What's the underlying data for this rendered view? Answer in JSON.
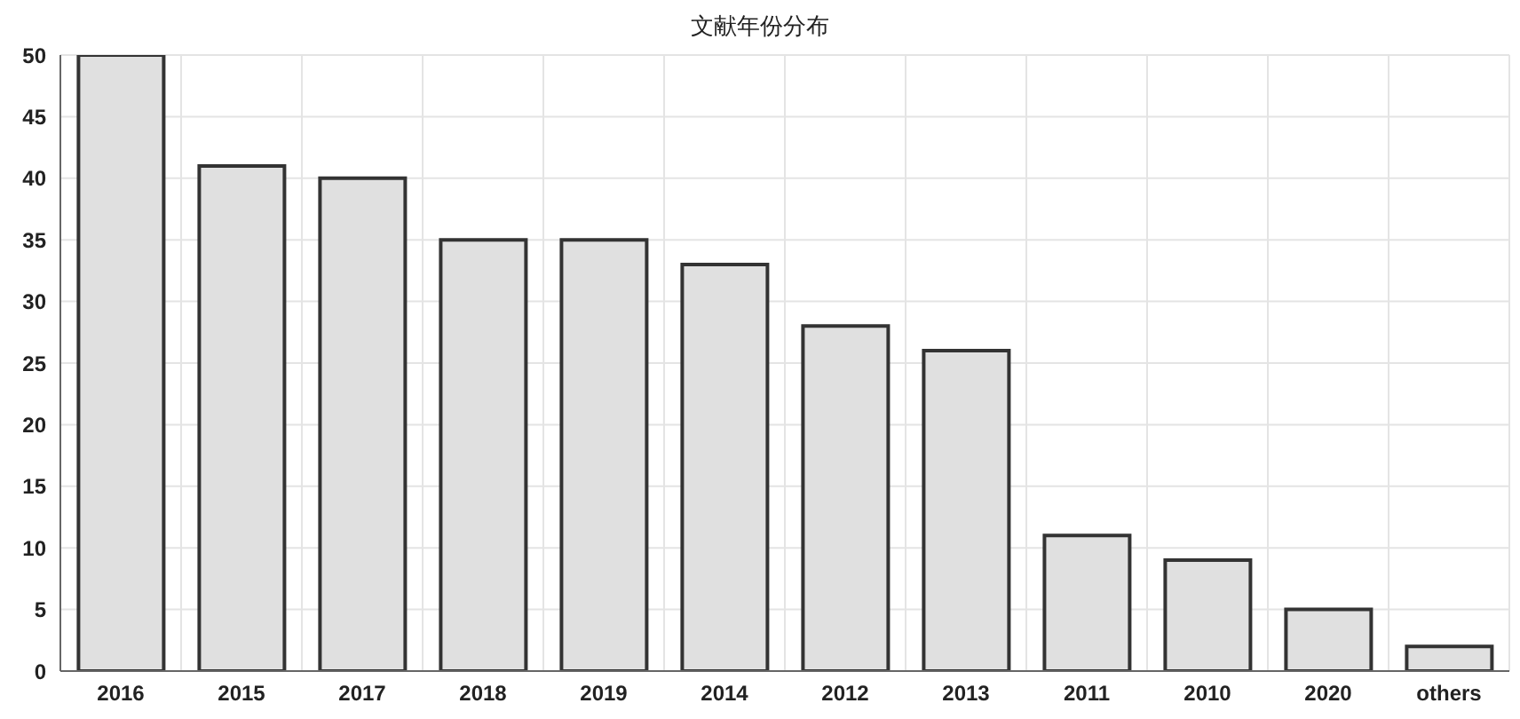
{
  "chart_data": {
    "type": "bar",
    "title": "文献年份分布",
    "categories": [
      "2016",
      "2015",
      "2017",
      "2018",
      "2019",
      "2014",
      "2012",
      "2013",
      "2011",
      "2010",
      "2020",
      "others"
    ],
    "values": [
      50,
      41,
      40,
      35,
      35,
      33,
      28,
      26,
      11,
      9,
      5,
      2
    ],
    "color": "#e0e0e0",
    "ylim": [
      0,
      50
    ],
    "yticks": [
      0,
      5,
      10,
      15,
      20,
      25,
      30,
      35,
      40,
      45,
      50
    ],
    "grid": true
  }
}
